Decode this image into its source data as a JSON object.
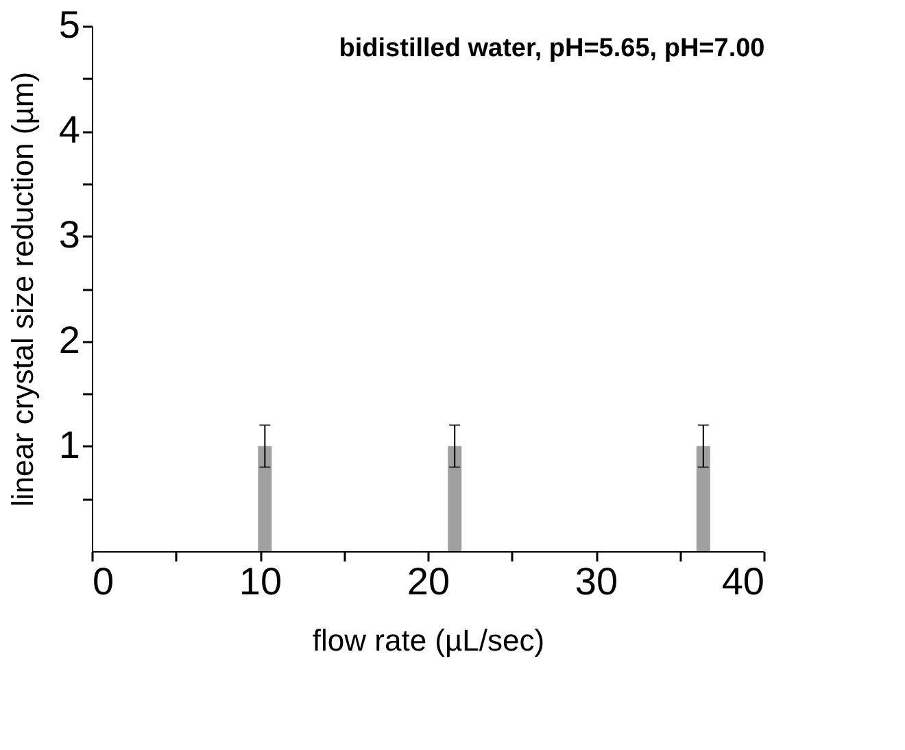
{
  "chart_data": {
    "type": "bar",
    "title": "bidistilled water, pH=5.65, pH=7.00",
    "xlabel": "flow rate (µL/sec)",
    "ylabel": "linear crystal size reduction (µm)",
    "x": [
      10.3,
      21.6,
      36.4
    ],
    "series": [
      {
        "color": "#a0a0a0",
        "values": [
          1,
          1,
          1
        ],
        "errors": [
          0.2,
          0.2,
          0.2
        ]
      }
    ],
    "xlim": [
      0,
      40
    ],
    "xticks": [
      0,
      {
        "value": 5,
        "label": null
      },
      10,
      {
        "value": 15,
        "label": null
      },
      20,
      {
        "value": 25,
        "label": null
      },
      30,
      {
        "value": 35,
        "label": null
      },
      40
    ],
    "ylim": [
      0,
      5
    ],
    "yticks": [
      {
        "value": 0.5,
        "label": null
      },
      1,
      {
        "value": 1.5,
        "label": null
      },
      2,
      {
        "value": 2.5,
        "label": null
      },
      3,
      {
        "value": 3.5,
        "label": null
      },
      4,
      {
        "value": 4.5,
        "label": null
      },
      5
    ],
    "grid": false
  }
}
